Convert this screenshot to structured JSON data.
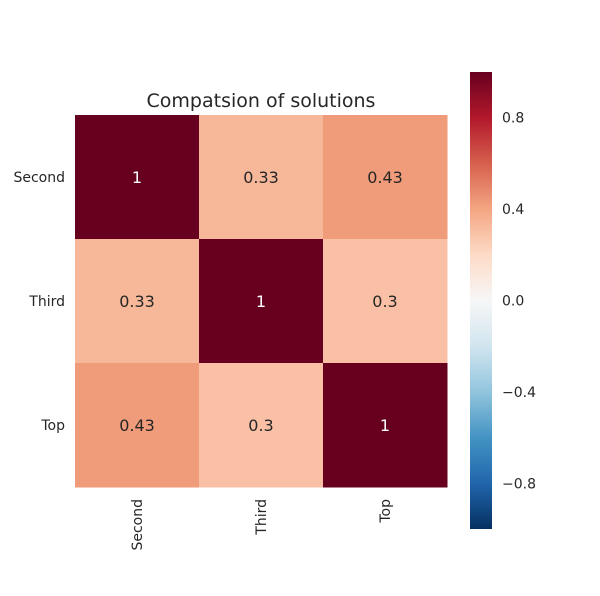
{
  "chart_data": {
    "type": "heatmap",
    "title": "Compatsion of solutions",
    "x_categories": [
      "Second",
      "Third",
      "Top"
    ],
    "y_categories": [
      "Second",
      "Third",
      "Top"
    ],
    "matrix": [
      [
        1,
        0.33,
        0.43
      ],
      [
        0.33,
        1,
        0.3
      ],
      [
        0.43,
        0.3,
        1
      ]
    ],
    "annotations": [
      [
        "1",
        "0.33",
        "0.43"
      ],
      [
        "0.33",
        "1",
        "0.3"
      ],
      [
        "0.43",
        "0.3",
        "1"
      ]
    ],
    "colorbar": {
      "vmin": -1,
      "vmax": 1,
      "ticks": [
        0.8,
        0.4,
        0.0,
        -0.4,
        -0.8
      ],
      "tick_labels": [
        "0.8",
        "0.4",
        "0.0",
        "−0.4",
        "−0.8"
      ],
      "colormap": "RdBu_r",
      "stops": [
        "#053061",
        "#2166ac",
        "#4393c3",
        "#92c5de",
        "#d1e5f0",
        "#f7f7f7",
        "#fddbc7",
        "#f4a582",
        "#d6604d",
        "#b2182b",
        "#67001f"
      ]
    },
    "grid": false,
    "legend": "right colorbar"
  }
}
